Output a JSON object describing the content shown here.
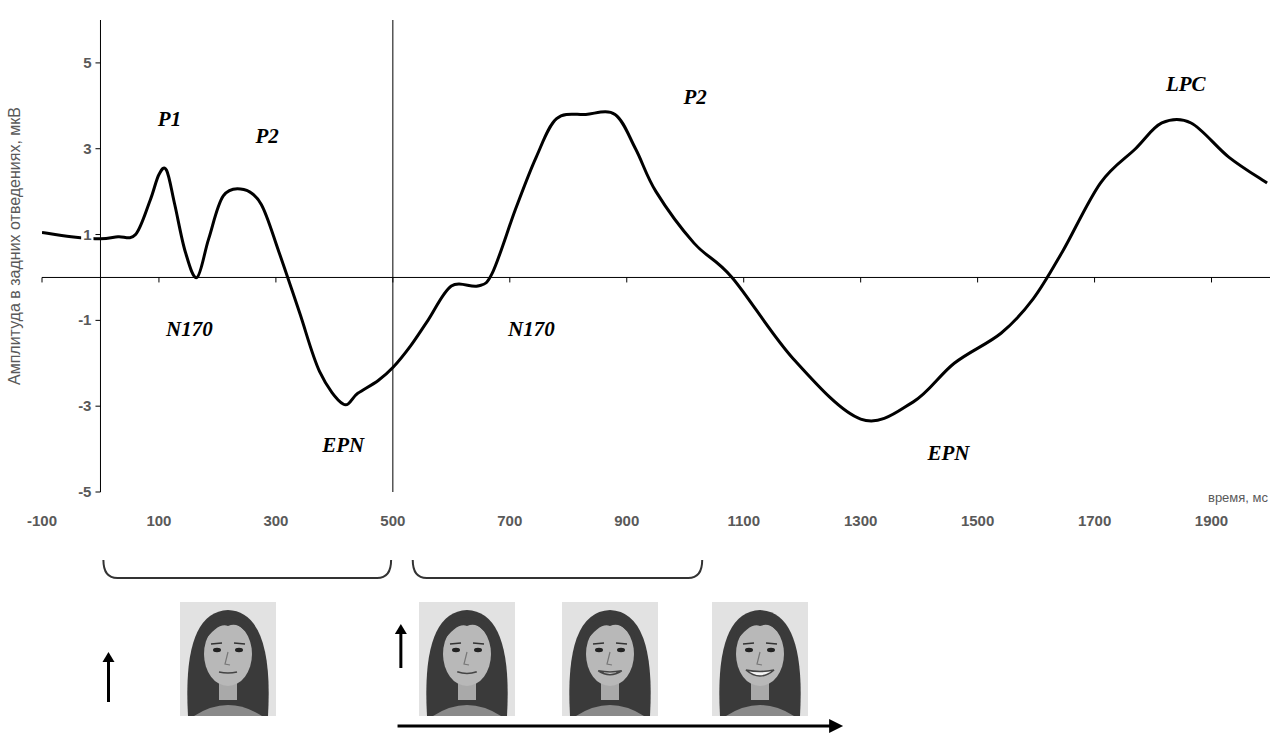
{
  "chart_data": {
    "type": "line",
    "ylabel": "Амплитуда в задних отведениях, мкВ",
    "xlabel": "время, мс",
    "x": [
      -100,
      -50,
      0,
      30,
      60,
      85,
      100,
      113,
      127,
      145,
      165,
      185,
      210,
      245,
      275,
      305,
      340,
      375,
      415,
      440,
      475,
      500,
      530,
      560,
      600,
      645,
      670,
      710,
      745,
      780,
      830,
      880,
      915,
      950,
      1015,
      1080,
      1185,
      1300,
      1390,
      1460,
      1540,
      1595,
      1645,
      1710,
      1770,
      1815,
      1865,
      1930,
      1995
    ],
    "series": [
      {
        "color": "#000000",
        "values": [
          1.05,
          0.95,
          0.9,
          0.95,
          1.0,
          1.8,
          2.4,
          2.5,
          1.7,
          0.6,
          0.0,
          0.9,
          1.9,
          2.05,
          1.7,
          0.6,
          -0.8,
          -2.2,
          -2.95,
          -2.7,
          -2.4,
          -2.1,
          -1.6,
          -1.0,
          -0.2,
          -0.2,
          0.1,
          1.6,
          2.8,
          3.7,
          3.8,
          3.8,
          3.0,
          2.0,
          0.8,
          0.0,
          -1.9,
          -3.3,
          -2.9,
          -2.0,
          -1.3,
          -0.5,
          0.6,
          2.2,
          3.0,
          3.6,
          3.6,
          2.8,
          2.2
        ]
      }
    ],
    "xlim": [
      -100,
      2000
    ],
    "ylim": [
      -5,
      6
    ],
    "xticks": [
      -100,
      100,
      300,
      500,
      700,
      900,
      1100,
      1300,
      1500,
      1700,
      1900
    ],
    "yticks": [
      -5,
      -3,
      -1,
      1,
      3,
      5
    ],
    "grid": false,
    "vline": 500,
    "annotations": [
      {
        "text": "P1",
        "x": 118,
        "y": 3.7
      },
      {
        "text": "P2",
        "x": 285,
        "y": 3.3
      },
      {
        "text": "N170",
        "x": 152,
        "y": -1.2
      },
      {
        "text": "EPN",
        "x": 415,
        "y": -3.9
      },
      {
        "text": "N170",
        "x": 737,
        "y": -1.2
      },
      {
        "text": "P2",
        "x": 1017,
        "y": 4.2
      },
      {
        "text": "EPN",
        "x": 1450,
        "y": -4.1
      },
      {
        "text": "LPC",
        "x": 1856,
        "y": 4.5
      }
    ],
    "onsets": [
      0,
      500
    ],
    "brackets": [
      [
        5,
        497
      ],
      [
        534,
        1029
      ]
    ],
    "morph_arrow": [
      508,
      1270
    ]
  }
}
